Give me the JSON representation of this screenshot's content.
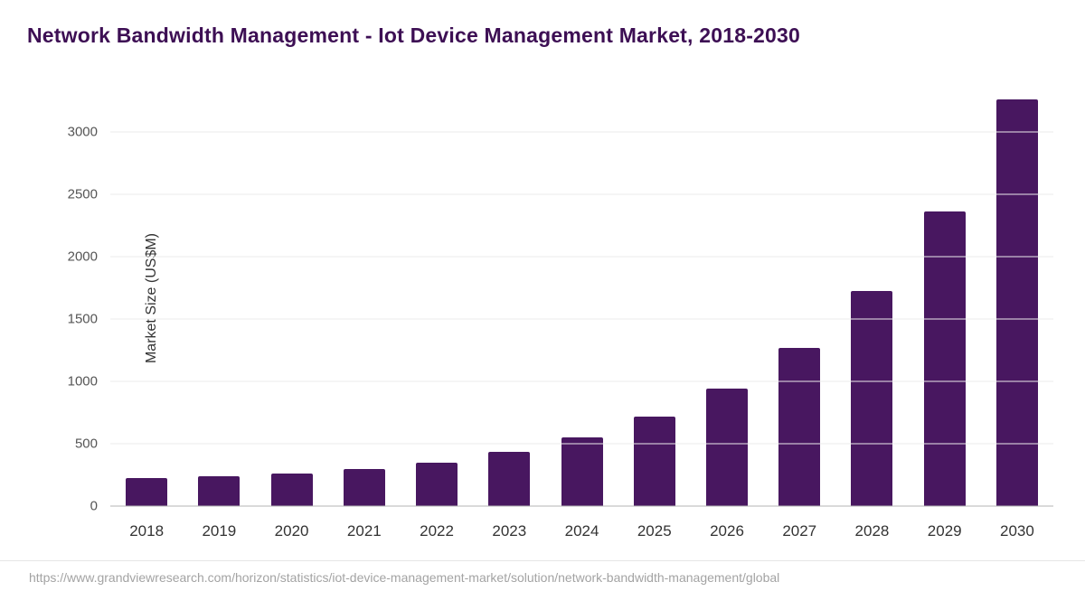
{
  "title": "Network Bandwidth Management - Iot Device Management Market, 2018-2030",
  "source": "https://www.grandviewresearch.com/horizon/statistics/iot-device-management-market/solution/network-bandwidth-management/global",
  "colors": {
    "bar": "#481760",
    "title": "#3d0f54",
    "gridline": "#ebebeb",
    "axis_line": "#b5b5b5"
  },
  "chart_data": {
    "type": "bar",
    "title": "Network Bandwidth Management - Iot Device Management Market, 2018-2030",
    "xlabel": "",
    "ylabel": "Market Size (US$M)",
    "categories": [
      "2018",
      "2019",
      "2020",
      "2021",
      "2022",
      "2023",
      "2024",
      "2025",
      "2026",
      "2027",
      "2028",
      "2029",
      "2030"
    ],
    "values": [
      225,
      240,
      260,
      295,
      350,
      435,
      550,
      720,
      945,
      1270,
      1725,
      2360,
      3260
    ],
    "yticks": [
      0,
      500,
      1000,
      1500,
      2000,
      2500,
      3000
    ],
    "ylim": [
      0,
      3335
    ],
    "grid": "horizontal",
    "legend_position": "none"
  }
}
